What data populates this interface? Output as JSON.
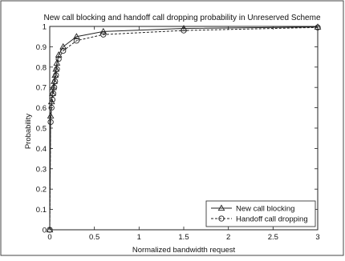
{
  "chart_data": {
    "type": "line",
    "title": "New call blocking and handoff call dropping probability in Unreserved Scheme",
    "xlabel": "Normalized bandwidth request",
    "ylabel": "Probability",
    "xlim": [
      0,
      3
    ],
    "ylim": [
      0,
      1
    ],
    "xticks": [
      "0",
      "0.5",
      "1",
      "1.5",
      "2",
      "2.5",
      "3"
    ],
    "yticks": [
      "0",
      "0.1",
      "0.2",
      "0.3",
      "0.4",
      "0.5",
      "0.6",
      "0.7",
      "0.8",
      "0.9",
      "1"
    ],
    "grid": false,
    "legend_position": "bottom-right",
    "series": [
      {
        "name": "New call blocking",
        "marker": "triangle",
        "linestyle": "solid",
        "x": [
          0,
          0.01,
          0.02,
          0.03,
          0.04,
          0.05,
          0.06,
          0.07,
          0.08,
          0.1,
          0.15,
          0.3,
          0.6,
          1.5,
          3.0
        ],
        "y": [
          0.0,
          0.56,
          0.63,
          0.67,
          0.7,
          0.73,
          0.76,
          0.79,
          0.82,
          0.86,
          0.9,
          0.95,
          0.975,
          0.99,
          0.997
        ]
      },
      {
        "name": "Handoff call dropping",
        "marker": "circle",
        "linestyle": "dashed",
        "x": [
          0,
          0.01,
          0.02,
          0.03,
          0.04,
          0.05,
          0.06,
          0.07,
          0.08,
          0.1,
          0.15,
          0.3,
          0.6,
          1.5,
          3.0
        ],
        "y": [
          0.0,
          0.53,
          0.6,
          0.64,
          0.67,
          0.7,
          0.73,
          0.76,
          0.79,
          0.84,
          0.88,
          0.93,
          0.96,
          0.98,
          0.995
        ]
      }
    ]
  }
}
